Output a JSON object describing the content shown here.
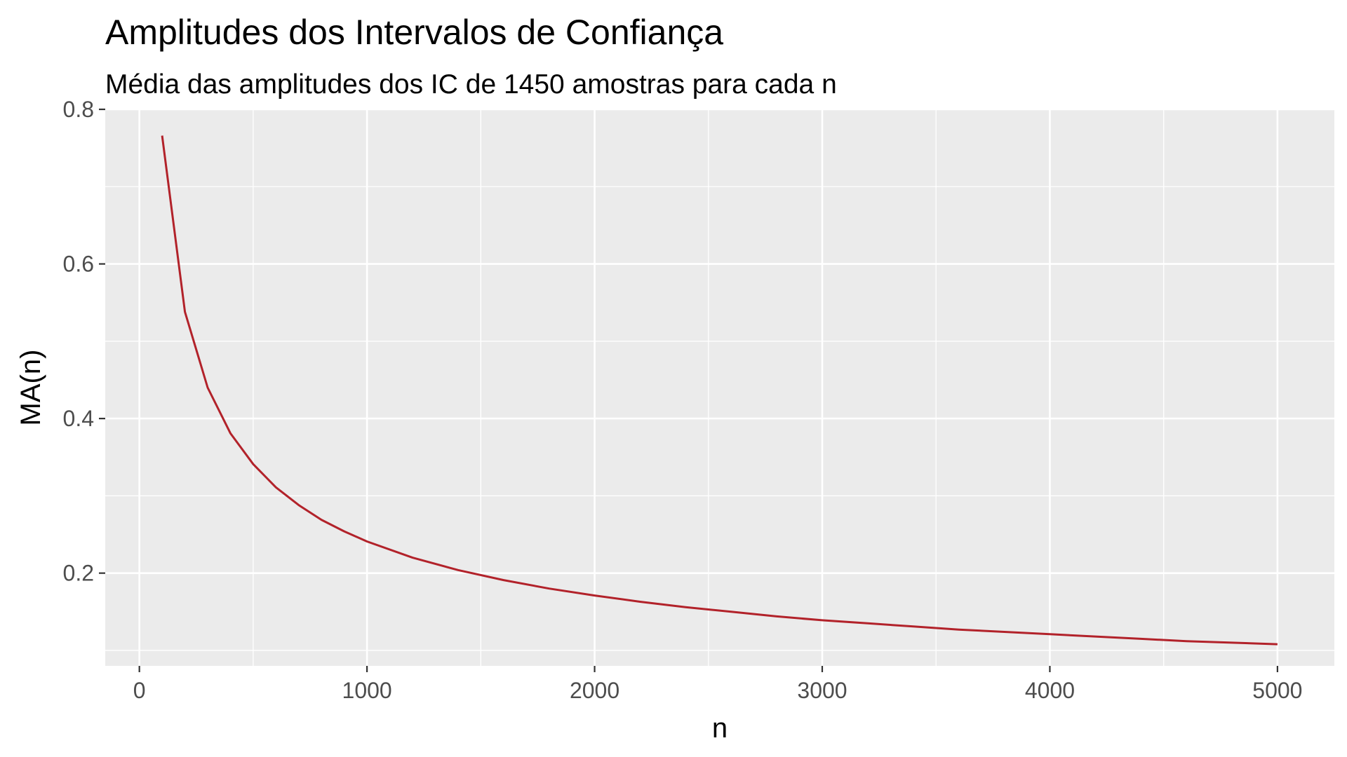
{
  "chart_data": {
    "type": "line",
    "title": "Amplitudes dos Intervalos de Confiança",
    "subtitle": "Média das amplitudes dos IC de 1450 amostras para cada n",
    "xlabel": "n",
    "ylabel": "MA(n)",
    "xlim": [
      -150,
      5250
    ],
    "ylim": [
      0.08,
      0.8
    ],
    "x_ticks": [
      0,
      1000,
      2000,
      3000,
      4000,
      5000
    ],
    "x_tick_labels": [
      "0",
      "1000",
      "2000",
      "3000",
      "4000",
      "5000"
    ],
    "y_ticks": [
      0.2,
      0.4,
      0.6,
      0.8
    ],
    "y_tick_labels": [
      "0.2",
      "0.4",
      "0.6",
      "0.8"
    ],
    "grid": true,
    "background": "#ebebeb",
    "grid_color": "#ffffff",
    "series": [
      {
        "color": "#b2222a",
        "x": [
          100,
          200,
          300,
          400,
          500,
          600,
          700,
          800,
          900,
          1000,
          1200,
          1400,
          1600,
          1800,
          2000,
          2200,
          2400,
          2600,
          2800,
          3000,
          3200,
          3400,
          3600,
          3800,
          4000,
          4200,
          4400,
          4600,
          4800,
          5000
        ],
        "y": [
          0.766,
          0.538,
          0.44,
          0.381,
          0.341,
          0.311,
          0.288,
          0.269,
          0.254,
          0.241,
          0.22,
          0.204,
          0.191,
          0.18,
          0.171,
          0.163,
          0.156,
          0.15,
          0.144,
          0.139,
          0.135,
          0.131,
          0.127,
          0.124,
          0.121,
          0.118,
          0.115,
          0.112,
          0.11,
          0.108
        ]
      }
    ]
  }
}
